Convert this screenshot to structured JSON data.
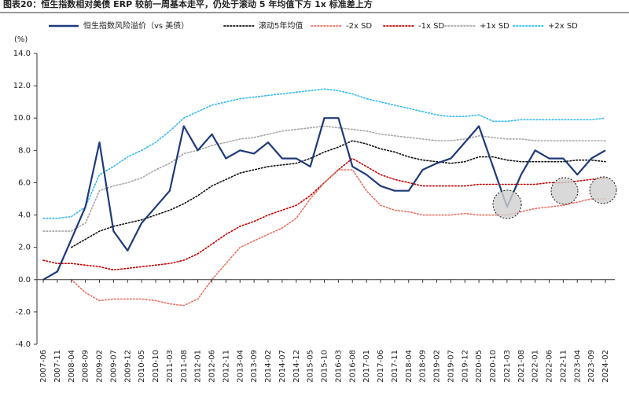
{
  "chart_data": {
    "type": "line",
    "title": "图表20：恒生指数相对美债 ERP 较前一周基本走平，仍处于滚动 5 年均值下方 1x 标准差上方",
    "y_label": "(%)",
    "categories": [
      "2007-06",
      "2007-11",
      "2008-04",
      "2008-09",
      "2009-02",
      "2009-07",
      "2009-12",
      "2010-05",
      "2010-10",
      "2011-03",
      "2011-08",
      "2012-01",
      "2012-06",
      "2012-11",
      "2013-04",
      "2013-09",
      "2014-02",
      "2014-07",
      "2014-12",
      "2015-05",
      "2015-10",
      "2016-03",
      "2016-08",
      "2017-01",
      "2017-06",
      "2017-11",
      "2018-04",
      "2018-09",
      "2019-02",
      "2019-07",
      "2019-12",
      "2020-05",
      "2020-10",
      "2021-03",
      "2021-08",
      "2022-01",
      "2022-06",
      "2022-11",
      "2023-04",
      "2023-09",
      "2024-02"
    ],
    "ylim": [
      -4,
      14
    ],
    "yticks": [
      {
        "value": -4,
        "label": "-4.0"
      },
      {
        "value": -2,
        "label": "-2.0"
      },
      {
        "value": 0,
        "label": "0.0"
      },
      {
        "value": 2,
        "label": "2.0"
      },
      {
        "value": 4,
        "label": "4.0"
      },
      {
        "value": 6,
        "label": "6.0"
      },
      {
        "value": 8,
        "label": "8.0"
      },
      {
        "value": 10,
        "label": "10.0"
      },
      {
        "value": 12,
        "label": "12.0"
      },
      {
        "value": 14,
        "label": "14.0"
      }
    ],
    "grid": false,
    "series": [
      {
        "name": "恒生指数风险溢价（vs 美债）",
        "color": "#1f3a7a",
        "style": "solid",
        "values": [
          0.0,
          0.5,
          2.5,
          4.5,
          8.5,
          3.0,
          1.8,
          3.5,
          4.5,
          5.5,
          9.5,
          8.0,
          9.0,
          7.5,
          8.0,
          7.8,
          8.5,
          7.5,
          7.5,
          7.0,
          10.0,
          10.0,
          7.0,
          6.5,
          5.8,
          5.5,
          5.5,
          6.8,
          7.2,
          7.5,
          8.5,
          9.5,
          7.0,
          4.5,
          6.5,
          8.0,
          7.5,
          7.5,
          6.5,
          7.5,
          8.0
        ]
      },
      {
        "name": "滚动5年均值",
        "color": "#111111",
        "style": "dotted",
        "values": [
          null,
          null,
          2.0,
          2.5,
          3.0,
          3.3,
          3.5,
          3.7,
          4.0,
          4.3,
          4.7,
          5.2,
          5.8,
          6.2,
          6.6,
          6.8,
          7.0,
          7.1,
          7.2,
          7.5,
          7.9,
          8.2,
          8.6,
          8.4,
          8.1,
          7.9,
          7.6,
          7.4,
          7.3,
          7.2,
          7.3,
          7.6,
          7.6,
          7.4,
          7.3,
          7.3,
          7.3,
          7.3,
          7.4,
          7.4,
          7.3
        ]
      },
      {
        "name": "-2x SD",
        "color": "#e8705f",
        "style": "dotted",
        "values": [
          null,
          null,
          0.0,
          -0.8,
          -1.3,
          -1.2,
          -1.2,
          -1.2,
          -1.3,
          -1.5,
          -1.6,
          -1.2,
          0.0,
          1.0,
          2.0,
          2.4,
          2.8,
          3.2,
          3.8,
          5.0,
          6.0,
          6.8,
          6.8,
          5.5,
          4.6,
          4.3,
          4.2,
          4.0,
          4.0,
          4.0,
          4.1,
          4.0,
          4.0,
          4.0,
          4.2,
          4.4,
          4.5,
          4.6,
          4.8,
          5.0,
          5.0
        ]
      },
      {
        "name": "-1x SD",
        "color": "#c00000",
        "style": "dotted",
        "values": [
          1.2,
          1.0,
          1.0,
          0.9,
          0.8,
          0.6,
          0.7,
          0.8,
          0.9,
          1.0,
          1.2,
          1.6,
          2.2,
          2.8,
          3.3,
          3.6,
          4.0,
          4.3,
          4.6,
          5.2,
          6.0,
          6.8,
          7.5,
          7.0,
          6.5,
          6.2,
          6.0,
          5.8,
          5.8,
          5.8,
          5.8,
          5.9,
          5.9,
          5.9,
          5.9,
          5.9,
          6.0,
          6.0,
          6.1,
          6.2,
          6.3
        ]
      },
      {
        "name": "+1x SD",
        "color": "#a6a6a6",
        "style": "dotted",
        "values": [
          3.0,
          3.0,
          3.0,
          3.5,
          5.5,
          5.8,
          6.0,
          6.3,
          6.8,
          7.2,
          7.8,
          8.0,
          8.3,
          8.5,
          8.7,
          8.8,
          9.0,
          9.2,
          9.3,
          9.4,
          9.5,
          9.4,
          9.3,
          9.2,
          9.0,
          8.9,
          8.8,
          8.7,
          8.6,
          8.6,
          8.7,
          8.9,
          8.8,
          8.7,
          8.7,
          8.6,
          8.6,
          8.6,
          8.6,
          8.6,
          8.6
        ]
      },
      {
        "name": "+2x SD",
        "color": "#33b9ee",
        "style": "dotted",
        "values": [
          3.8,
          3.8,
          3.9,
          4.5,
          6.5,
          7.0,
          7.6,
          8.0,
          8.5,
          9.2,
          10.0,
          10.4,
          10.8,
          11.0,
          11.2,
          11.3,
          11.4,
          11.5,
          11.6,
          11.7,
          11.8,
          11.7,
          11.5,
          11.2,
          11.0,
          10.8,
          10.6,
          10.4,
          10.2,
          10.1,
          10.1,
          10.2,
          9.8,
          9.8,
          9.9,
          9.9,
          9.9,
          9.9,
          9.9,
          9.9,
          10.0
        ]
      }
    ]
  }
}
